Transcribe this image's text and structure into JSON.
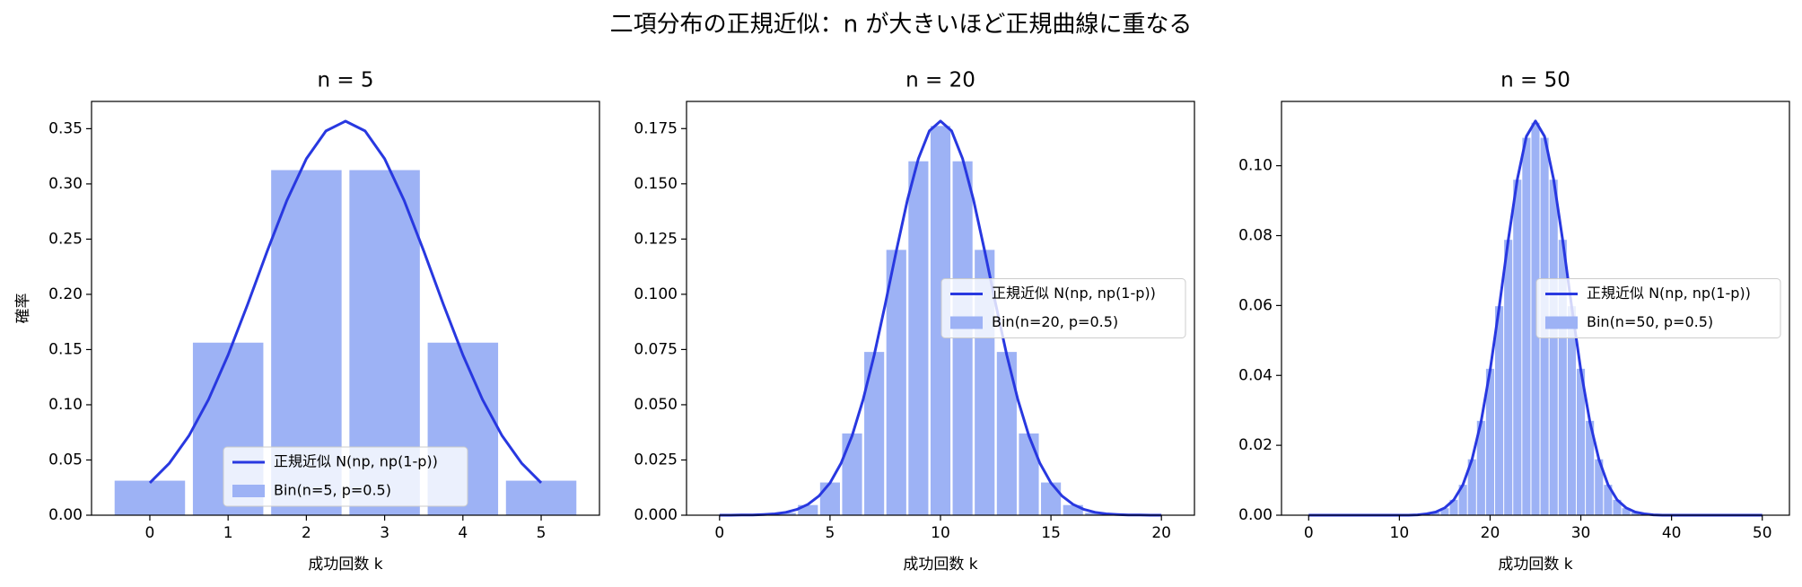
{
  "title": "二項分布の正規近似：n が大きいほど正規曲線に重なる",
  "chart_data": [
    {
      "type": "bar",
      "title": "n = 5",
      "xlabel": "成功回数 k",
      "ylabel": "確率",
      "xlim": [
        -0.745,
        5.745
      ],
      "ylim": [
        0,
        0.3747
      ],
      "xticks": [
        0,
        1,
        2,
        3,
        4,
        5
      ],
      "yticks": [
        {
          "value": 0,
          "label": "0.00"
        },
        {
          "value": 0.05,
          "label": "0.05"
        },
        {
          "value": 0.1,
          "label": "0.10"
        },
        {
          "value": 0.15,
          "label": "0.15"
        },
        {
          "value": 0.2,
          "label": "0.20"
        },
        {
          "value": 0.25,
          "label": "0.25"
        },
        {
          "value": 0.3,
          "label": "0.30"
        },
        {
          "value": 0.35,
          "label": "0.35"
        }
      ],
      "legend": "lower center",
      "bar_width": 0.9,
      "series": [
        {
          "name": "正規近似 N(np, np(1-p))",
          "type": "line",
          "color": "#2838e0",
          "x": [
            0,
            0.25,
            0.5,
            0.75,
            1,
            1.25,
            1.5,
            1.75,
            2,
            2.25,
            2.5,
            2.75,
            3,
            3.25,
            3.5,
            3.75,
            4,
            4.25,
            4.5,
            4.75,
            5
          ],
          "values": [
            0.0293,
            0.0471,
            0.072,
            0.1048,
            0.1451,
            0.191,
            0.2392,
            0.2849,
            0.3228,
            0.348,
            0.3568,
            0.348,
            0.3228,
            0.2849,
            0.2392,
            0.191,
            0.1451,
            0.1048,
            0.072,
            0.0471,
            0.0293
          ]
        },
        {
          "name": "Bin(n=5, p=0.5)",
          "type": "bar",
          "color": "#9db2f5",
          "x": [
            0,
            1,
            2,
            3,
            4,
            5
          ],
          "values": [
            0.03125,
            0.15625,
            0.3125,
            0.3125,
            0.15625,
            0.03125
          ]
        }
      ]
    },
    {
      "type": "bar",
      "title": "n = 20",
      "xlabel": "成功回数 k",
      "xlim": [
        -1.495,
        21.495
      ],
      "ylim": [
        0,
        0.1873
      ],
      "xticks": [
        0,
        5,
        10,
        15,
        20
      ],
      "yticks": [
        {
          "value": 0,
          "label": "0.000"
        },
        {
          "value": 0.025,
          "label": "0.025"
        },
        {
          "value": 0.05,
          "label": "0.050"
        },
        {
          "value": 0.075,
          "label": "0.075"
        },
        {
          "value": 0.1,
          "label": "0.100"
        },
        {
          "value": 0.125,
          "label": "0.125"
        },
        {
          "value": 0.15,
          "label": "0.150"
        },
        {
          "value": 0.175,
          "label": "0.175"
        }
      ],
      "legend": "center right",
      "bar_width": 0.9,
      "series": [
        {
          "name": "正規近似 N(np, np(1-p))",
          "type": "line",
          "color": "#2838e0",
          "x": [
            0,
            0.5,
            1,
            1.5,
            2,
            2.5,
            3,
            3.5,
            4,
            4.5,
            5,
            5.5,
            6,
            6.5,
            7,
            7.5,
            8,
            8.5,
            9,
            9.5,
            10,
            10.5,
            11,
            11.5,
            12,
            12.5,
            13,
            13.5,
            14,
            14.5,
            15,
            15.5,
            16,
            16.5,
            17,
            17.5,
            18,
            18.5,
            19,
            19.5,
            20
          ],
          "values": [
            0,
            0,
            0.0001,
            0.0001,
            0.0003,
            0.0006,
            0.0013,
            0.0026,
            0.0049,
            0.0087,
            0.0146,
            0.0235,
            0.036,
            0.0524,
            0.0725,
            0.0955,
            0.1196,
            0.1425,
            0.1614,
            0.174,
            0.1784,
            0.174,
            0.1614,
            0.1425,
            0.1196,
            0.0955,
            0.0725,
            0.0524,
            0.036,
            0.0235,
            0.0146,
            0.0087,
            0.0049,
            0.0026,
            0.0013,
            0.0006,
            0.0003,
            0.0001,
            0.0001,
            0,
            0
          ]
        },
        {
          "name": "Bin(n=20, p=0.5)",
          "type": "bar",
          "color": "#9db2f5",
          "x": [
            0,
            1,
            2,
            3,
            4,
            5,
            6,
            7,
            8,
            9,
            10,
            11,
            12,
            13,
            14,
            15,
            16,
            17,
            18,
            19,
            20
          ],
          "values": [
            0,
            0,
            0.0002,
            0.0011,
            0.0046,
            0.0148,
            0.037,
            0.0739,
            0.1201,
            0.1602,
            0.1762,
            0.1602,
            0.1201,
            0.0739,
            0.037,
            0.0148,
            0.0046,
            0.0011,
            0.0002,
            0,
            0
          ]
        }
      ]
    },
    {
      "type": "bar",
      "title": "n = 50",
      "xlabel": "成功回数 k",
      "xlim": [
        -2.995,
        52.995
      ],
      "ylim": [
        0,
        0.1184
      ],
      "xticks": [
        0,
        10,
        20,
        30,
        40,
        50
      ],
      "yticks": [
        {
          "value": 0,
          "label": "0.00"
        },
        {
          "value": 0.02,
          "label": "0.02"
        },
        {
          "value": 0.04,
          "label": "0.04"
        },
        {
          "value": 0.06,
          "label": "0.06"
        },
        {
          "value": 0.08,
          "label": "0.08"
        },
        {
          "value": 0.1,
          "label": "0.10"
        }
      ],
      "legend": "center right",
      "bar_width": 0.9,
      "series": [
        {
          "name": "正規近似 N(np, np(1-p))",
          "type": "line",
          "color": "#2838e0",
          "x": [
            0,
            1,
            2,
            3,
            4,
            5,
            6,
            7,
            8,
            9,
            10,
            11,
            12,
            13,
            14,
            15,
            16,
            17,
            18,
            19,
            20,
            21,
            22,
            23,
            24,
            25,
            26,
            27,
            28,
            29,
            30,
            31,
            32,
            33,
            34,
            35,
            36,
            37,
            38,
            39,
            40,
            41,
            42,
            43,
            44,
            45,
            46,
            47,
            48,
            49,
            50
          ],
          "values": [
            0,
            0,
            0,
            0,
            0,
            0,
            0,
            0,
            0,
            0,
            0,
            0,
            0.0001,
            0.0004,
            0.0009,
            0.0021,
            0.0044,
            0.0087,
            0.0159,
            0.0267,
            0.0415,
            0.0595,
            0.0787,
            0.0961,
            0.1084,
            0.1128,
            0.1084,
            0.0961,
            0.0787,
            0.0595,
            0.0415,
            0.0267,
            0.0159,
            0.0087,
            0.0044,
            0.0021,
            0.0009,
            0.0004,
            0.0001,
            0,
            0,
            0,
            0,
            0,
            0,
            0,
            0,
            0,
            0,
            0,
            0
          ]
        },
        {
          "name": "Bin(n=50, p=0.5)",
          "type": "bar",
          "color": "#9db2f5",
          "x": [
            0,
            1,
            2,
            3,
            4,
            5,
            6,
            7,
            8,
            9,
            10,
            11,
            12,
            13,
            14,
            15,
            16,
            17,
            18,
            19,
            20,
            21,
            22,
            23,
            24,
            25,
            26,
            27,
            28,
            29,
            30,
            31,
            32,
            33,
            34,
            35,
            36,
            37,
            38,
            39,
            40,
            41,
            42,
            43,
            44,
            45,
            46,
            47,
            48,
            49,
            50
          ],
          "values": [
            0,
            0,
            0,
            0,
            0,
            0,
            0,
            0,
            0,
            0,
            0,
            0,
            0.0001,
            0.0003,
            0.0008,
            0.002,
            0.0044,
            0.0087,
            0.016,
            0.027,
            0.0419,
            0.0598,
            0.0788,
            0.096,
            0.108,
            0.1123,
            0.108,
            0.096,
            0.0788,
            0.0598,
            0.0419,
            0.027,
            0.016,
            0.0087,
            0.0044,
            0.002,
            0.0008,
            0.0003,
            0.0001,
            0,
            0,
            0,
            0,
            0,
            0,
            0,
            0,
            0,
            0,
            0,
            0
          ]
        }
      ]
    }
  ]
}
